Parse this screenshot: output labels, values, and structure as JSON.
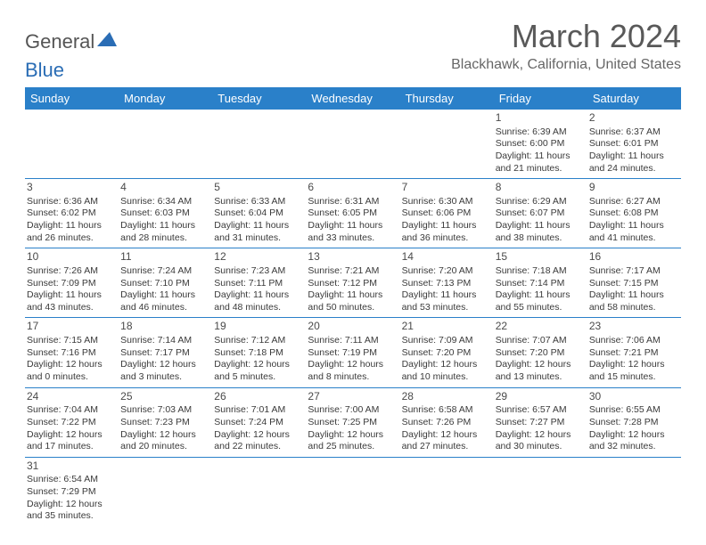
{
  "logo": {
    "part1": "General",
    "part2": "Blue"
  },
  "title": "March 2024",
  "subtitle": "Blackhawk, California, United States",
  "weekdays": [
    "Sunday",
    "Monday",
    "Tuesday",
    "Wednesday",
    "Thursday",
    "Friday",
    "Saturday"
  ],
  "colors": {
    "header_bg": "#2a80c9",
    "header_text": "#ffffff",
    "title_text": "#595959",
    "body_text": "#3a3a3a",
    "logo_blue": "#2a6db5",
    "border": "#2a80c9",
    "background": "#ffffff"
  },
  "font_sizes": {
    "title": 36,
    "subtitle": 16,
    "weekday": 13,
    "daynum": 12,
    "cell": 10.5
  },
  "weeks": [
    [
      null,
      null,
      null,
      null,
      null,
      {
        "day": "1",
        "sunrise": "Sunrise: 6:39 AM",
        "sunset": "Sunset: 6:00 PM",
        "daylight1": "Daylight: 11 hours",
        "daylight2": "and 21 minutes."
      },
      {
        "day": "2",
        "sunrise": "Sunrise: 6:37 AM",
        "sunset": "Sunset: 6:01 PM",
        "daylight1": "Daylight: 11 hours",
        "daylight2": "and 24 minutes."
      }
    ],
    [
      {
        "day": "3",
        "sunrise": "Sunrise: 6:36 AM",
        "sunset": "Sunset: 6:02 PM",
        "daylight1": "Daylight: 11 hours",
        "daylight2": "and 26 minutes."
      },
      {
        "day": "4",
        "sunrise": "Sunrise: 6:34 AM",
        "sunset": "Sunset: 6:03 PM",
        "daylight1": "Daylight: 11 hours",
        "daylight2": "and 28 minutes."
      },
      {
        "day": "5",
        "sunrise": "Sunrise: 6:33 AM",
        "sunset": "Sunset: 6:04 PM",
        "daylight1": "Daylight: 11 hours",
        "daylight2": "and 31 minutes."
      },
      {
        "day": "6",
        "sunrise": "Sunrise: 6:31 AM",
        "sunset": "Sunset: 6:05 PM",
        "daylight1": "Daylight: 11 hours",
        "daylight2": "and 33 minutes."
      },
      {
        "day": "7",
        "sunrise": "Sunrise: 6:30 AM",
        "sunset": "Sunset: 6:06 PM",
        "daylight1": "Daylight: 11 hours",
        "daylight2": "and 36 minutes."
      },
      {
        "day": "8",
        "sunrise": "Sunrise: 6:29 AM",
        "sunset": "Sunset: 6:07 PM",
        "daylight1": "Daylight: 11 hours",
        "daylight2": "and 38 minutes."
      },
      {
        "day": "9",
        "sunrise": "Sunrise: 6:27 AM",
        "sunset": "Sunset: 6:08 PM",
        "daylight1": "Daylight: 11 hours",
        "daylight2": "and 41 minutes."
      }
    ],
    [
      {
        "day": "10",
        "sunrise": "Sunrise: 7:26 AM",
        "sunset": "Sunset: 7:09 PM",
        "daylight1": "Daylight: 11 hours",
        "daylight2": "and 43 minutes."
      },
      {
        "day": "11",
        "sunrise": "Sunrise: 7:24 AM",
        "sunset": "Sunset: 7:10 PM",
        "daylight1": "Daylight: 11 hours",
        "daylight2": "and 46 minutes."
      },
      {
        "day": "12",
        "sunrise": "Sunrise: 7:23 AM",
        "sunset": "Sunset: 7:11 PM",
        "daylight1": "Daylight: 11 hours",
        "daylight2": "and 48 minutes."
      },
      {
        "day": "13",
        "sunrise": "Sunrise: 7:21 AM",
        "sunset": "Sunset: 7:12 PM",
        "daylight1": "Daylight: 11 hours",
        "daylight2": "and 50 minutes."
      },
      {
        "day": "14",
        "sunrise": "Sunrise: 7:20 AM",
        "sunset": "Sunset: 7:13 PM",
        "daylight1": "Daylight: 11 hours",
        "daylight2": "and 53 minutes."
      },
      {
        "day": "15",
        "sunrise": "Sunrise: 7:18 AM",
        "sunset": "Sunset: 7:14 PM",
        "daylight1": "Daylight: 11 hours",
        "daylight2": "and 55 minutes."
      },
      {
        "day": "16",
        "sunrise": "Sunrise: 7:17 AM",
        "sunset": "Sunset: 7:15 PM",
        "daylight1": "Daylight: 11 hours",
        "daylight2": "and 58 minutes."
      }
    ],
    [
      {
        "day": "17",
        "sunrise": "Sunrise: 7:15 AM",
        "sunset": "Sunset: 7:16 PM",
        "daylight1": "Daylight: 12 hours",
        "daylight2": "and 0 minutes."
      },
      {
        "day": "18",
        "sunrise": "Sunrise: 7:14 AM",
        "sunset": "Sunset: 7:17 PM",
        "daylight1": "Daylight: 12 hours",
        "daylight2": "and 3 minutes."
      },
      {
        "day": "19",
        "sunrise": "Sunrise: 7:12 AM",
        "sunset": "Sunset: 7:18 PM",
        "daylight1": "Daylight: 12 hours",
        "daylight2": "and 5 minutes."
      },
      {
        "day": "20",
        "sunrise": "Sunrise: 7:11 AM",
        "sunset": "Sunset: 7:19 PM",
        "daylight1": "Daylight: 12 hours",
        "daylight2": "and 8 minutes."
      },
      {
        "day": "21",
        "sunrise": "Sunrise: 7:09 AM",
        "sunset": "Sunset: 7:20 PM",
        "daylight1": "Daylight: 12 hours",
        "daylight2": "and 10 minutes."
      },
      {
        "day": "22",
        "sunrise": "Sunrise: 7:07 AM",
        "sunset": "Sunset: 7:20 PM",
        "daylight1": "Daylight: 12 hours",
        "daylight2": "and 13 minutes."
      },
      {
        "day": "23",
        "sunrise": "Sunrise: 7:06 AM",
        "sunset": "Sunset: 7:21 PM",
        "daylight1": "Daylight: 12 hours",
        "daylight2": "and 15 minutes."
      }
    ],
    [
      {
        "day": "24",
        "sunrise": "Sunrise: 7:04 AM",
        "sunset": "Sunset: 7:22 PM",
        "daylight1": "Daylight: 12 hours",
        "daylight2": "and 17 minutes."
      },
      {
        "day": "25",
        "sunrise": "Sunrise: 7:03 AM",
        "sunset": "Sunset: 7:23 PM",
        "daylight1": "Daylight: 12 hours",
        "daylight2": "and 20 minutes."
      },
      {
        "day": "26",
        "sunrise": "Sunrise: 7:01 AM",
        "sunset": "Sunset: 7:24 PM",
        "daylight1": "Daylight: 12 hours",
        "daylight2": "and 22 minutes."
      },
      {
        "day": "27",
        "sunrise": "Sunrise: 7:00 AM",
        "sunset": "Sunset: 7:25 PM",
        "daylight1": "Daylight: 12 hours",
        "daylight2": "and 25 minutes."
      },
      {
        "day": "28",
        "sunrise": "Sunrise: 6:58 AM",
        "sunset": "Sunset: 7:26 PM",
        "daylight1": "Daylight: 12 hours",
        "daylight2": "and 27 minutes."
      },
      {
        "day": "29",
        "sunrise": "Sunrise: 6:57 AM",
        "sunset": "Sunset: 7:27 PM",
        "daylight1": "Daylight: 12 hours",
        "daylight2": "and 30 minutes."
      },
      {
        "day": "30",
        "sunrise": "Sunrise: 6:55 AM",
        "sunset": "Sunset: 7:28 PM",
        "daylight1": "Daylight: 12 hours",
        "daylight2": "and 32 minutes."
      }
    ],
    [
      {
        "day": "31",
        "sunrise": "Sunrise: 6:54 AM",
        "sunset": "Sunset: 7:29 PM",
        "daylight1": "Daylight: 12 hours",
        "daylight2": "and 35 minutes."
      },
      null,
      null,
      null,
      null,
      null,
      null
    ]
  ]
}
